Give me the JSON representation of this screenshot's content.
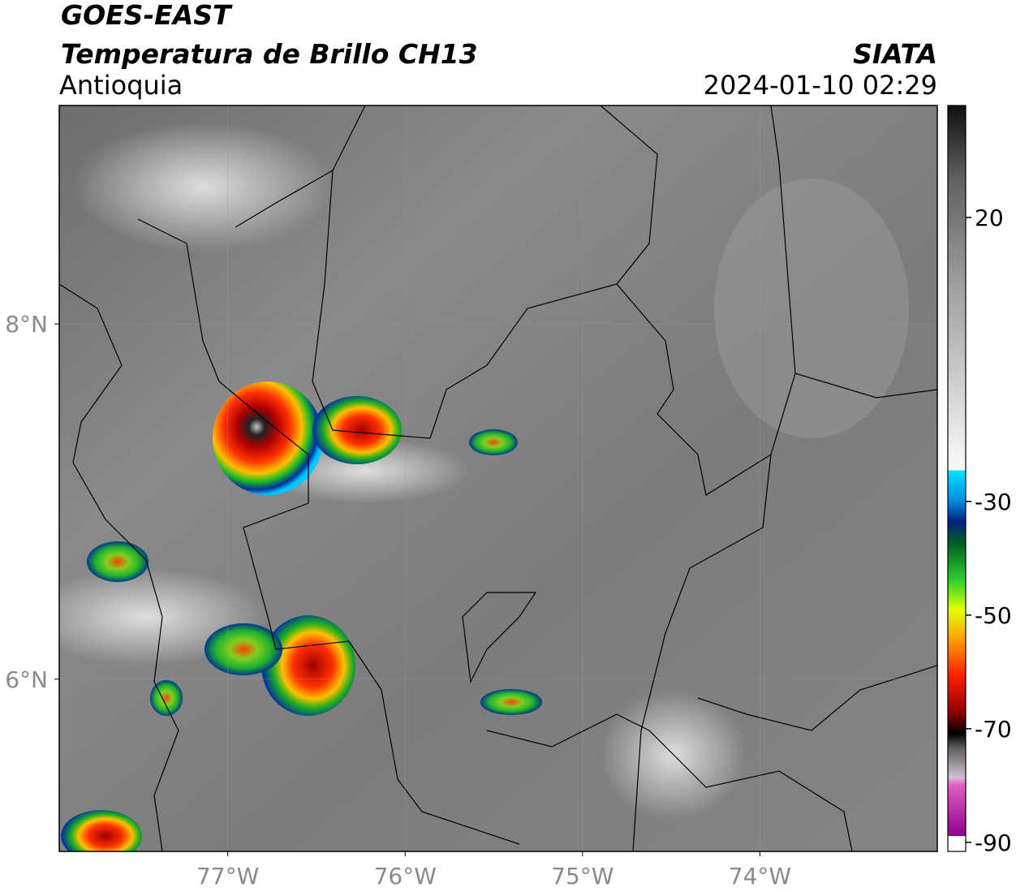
{
  "header": {
    "title": "GOES-EAST",
    "subtitle": "Temperatura de Brillo CH13",
    "region": "Antioquia",
    "source": "SIATA",
    "datetime": "2024-01-10 02:29"
  },
  "map": {
    "xlim": [
      -77.95,
      -73.0
    ],
    "ylim": [
      5.03,
      9.23
    ],
    "xticks": [
      {
        "value": -77,
        "label": "77°W"
      },
      {
        "value": -76,
        "label": "76°W"
      },
      {
        "value": -75,
        "label": "75°W"
      },
      {
        "value": -74,
        "label": "74°W"
      }
    ],
    "yticks": [
      {
        "value": 8,
        "label": "8°N"
      },
      {
        "value": 6,
        "label": "6°N"
      }
    ],
    "grid": true
  },
  "colorbar": {
    "lim": [
      -91.6,
      39.7
    ],
    "ticks": [
      20,
      -30,
      -50,
      -70,
      -90
    ]
  }
}
